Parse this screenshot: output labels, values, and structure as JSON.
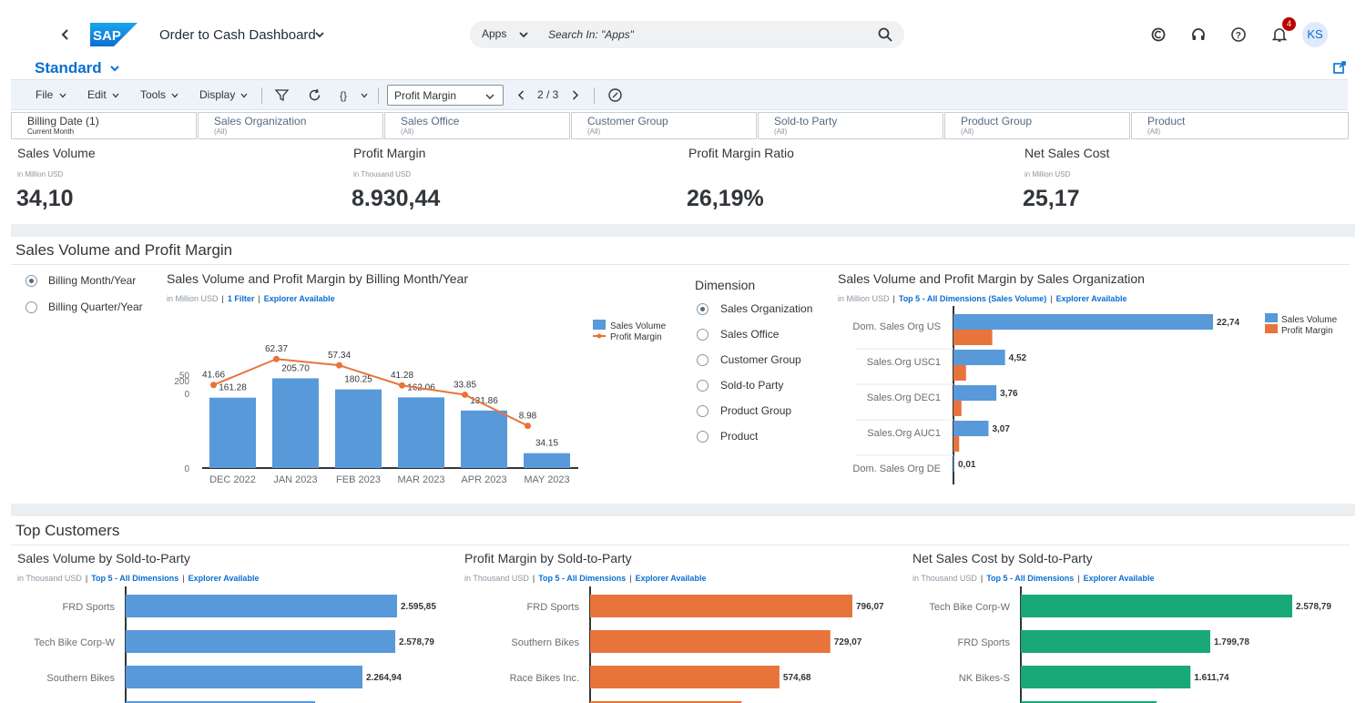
{
  "shell": {
    "app_title": "Order to Cash Dashboard",
    "search_scope": "Apps",
    "search_placeholder": "Search In: \"Apps\"",
    "notification_count": "4",
    "user_initials": "KS"
  },
  "variant": "Standard",
  "toolbar": {
    "menus": [
      "File",
      "Edit",
      "Tools",
      "Display"
    ],
    "selected_measure": "Profit Margin",
    "pager": "2 / 3"
  },
  "filters": [
    {
      "label": "Billing Date (1)",
      "value": "Current Month"
    },
    {
      "label": "Sales Organization",
      "value": "(All)"
    },
    {
      "label": "Sales Office",
      "value": "(All)"
    },
    {
      "label": "Customer Group",
      "value": "(All)"
    },
    {
      "label": "Sold-to Party",
      "value": "(All)"
    },
    {
      "label": "Product Group",
      "value": "(All)"
    },
    {
      "label": "Product",
      "value": "(All)"
    }
  ],
  "kpis": [
    {
      "title": "Sales Volume",
      "unit": "in Million USD",
      "value": "34,10"
    },
    {
      "title": "Profit Margin",
      "unit": "in Thousand USD",
      "value": "8.930,44"
    },
    {
      "title": "Profit Margin Ratio",
      "unit": "",
      "value": "26,19%"
    },
    {
      "title": "Net Sales Cost",
      "unit": "in Million USD",
      "value": "25,17"
    }
  ],
  "section1": {
    "title": "Sales Volume and Profit Margin",
    "period_options": [
      "Billing Month/Year",
      "Billing Quarter/Year"
    ],
    "dimension_title": "Dimension",
    "dimension_options": [
      "Sales Organization",
      "Sales Office",
      "Customer Group",
      "Sold-to Party",
      "Product Group",
      "Product"
    ],
    "chart1": {
      "title": "Sales Volume and Profit Margin by Billing Month/Year",
      "unit": "in Million USD",
      "link1": "1 Filter",
      "link2": "Explorer Available"
    },
    "chart2": {
      "title": "Sales Volume and Profit Margin by Sales Organization",
      "unit": "in Million USD",
      "link1": "Top 5 - All Dimensions (Sales Volume)",
      "link2": "Explorer Available"
    }
  },
  "section2": {
    "title": "Top Customers",
    "charts": [
      {
        "title": "Sales Volume by Sold-to-Party",
        "unit": "in Thousand USD",
        "link1": "Top 5 - All Dimensions",
        "link2": "Explorer Available"
      },
      {
        "title": "Profit Margin by Sold-to-Party",
        "unit": "in Thousand USD",
        "link1": "Top 5 - All Dimensions",
        "link2": "Explorer Available"
      },
      {
        "title": "Net Sales Cost by Sold-to-Party",
        "unit": "in Thousand USD",
        "link1": "Top 5 - All Dimensions",
        "link2": "Explorer Available"
      }
    ]
  },
  "colors": {
    "blue": "#5899da",
    "orange": "#e8743b",
    "green": "#19a979",
    "link": "#0a6ed1"
  },
  "chart_data": [
    {
      "type": "bar",
      "categories": [
        "DEC 2022",
        "JAN 2023",
        "FEB 2023",
        "MAR 2023",
        "APR 2023",
        "MAY 2023"
      ],
      "series": [
        {
          "name": "Sales Volume",
          "type": "bar",
          "values": [
            161.28,
            205.7,
            180.25,
            162.06,
            131.86,
            34.15
          ],
          "labels": [
            "161.28",
            "205.70",
            "180.25",
            "162.06",
            "131.86",
            "34.15"
          ]
        },
        {
          "name": "Profit Margin",
          "type": "line",
          "values": [
            41.66,
            62.37,
            57.34,
            41.28,
            33.85,
            8.98
          ],
          "labels": [
            "41.66",
            "62.37",
            "57.34",
            "41.28",
            "33.85",
            "8.98"
          ]
        }
      ],
      "bar_ticks": [
        "0",
        "200"
      ],
      "line_ticks": [
        "0",
        "50"
      ],
      "legend": [
        "Sales Volume",
        "Profit Margin"
      ]
    },
    {
      "type": "bar",
      "orientation": "horizontal",
      "categories": [
        "Dom. Sales Org US",
        "Sales.Org USC1",
        "Sales.Org DEC1",
        "Sales.Org AUC1",
        "Dom. Sales Org DE"
      ],
      "series": [
        {
          "name": "Sales Volume",
          "values": [
            22.74,
            4.52,
            3.76,
            3.07,
            0.01
          ],
          "labels": [
            "22,74",
            "4,52",
            "3,76",
            "3,07",
            "0,01"
          ]
        },
        {
          "name": "Profit Margin",
          "values": [
            3.4,
            1.1,
            0.7,
            0.5,
            0.0
          ]
        }
      ],
      "legend": [
        "Sales Volume",
        "Profit Margin"
      ]
    },
    {
      "type": "bar",
      "orientation": "horizontal",
      "categories": [
        "FRD Sports",
        "Tech Bike Corp-W",
        "Southern Bikes"
      ],
      "values": [
        2595.85,
        2578.79,
        2264.94
      ],
      "labels": [
        "2.595,85",
        "2.578,79",
        "2.264,94"
      ]
    },
    {
      "type": "bar",
      "orientation": "horizontal",
      "categories": [
        "FRD Sports",
        "Southern Bikes",
        "Race Bikes Inc."
      ],
      "values": [
        796.07,
        729.07,
        574.68
      ],
      "labels": [
        "796,07",
        "729,07",
        "574,68"
      ]
    },
    {
      "type": "bar",
      "orientation": "horizontal",
      "categories": [
        "Tech Bike Corp-W",
        "FRD Sports",
        "NK Bikes-S"
      ],
      "values": [
        2578.79,
        1799.78,
        1611.74
      ],
      "labels": [
        "2.578,79",
        "1.799,78",
        "1.611,74"
      ]
    }
  ]
}
